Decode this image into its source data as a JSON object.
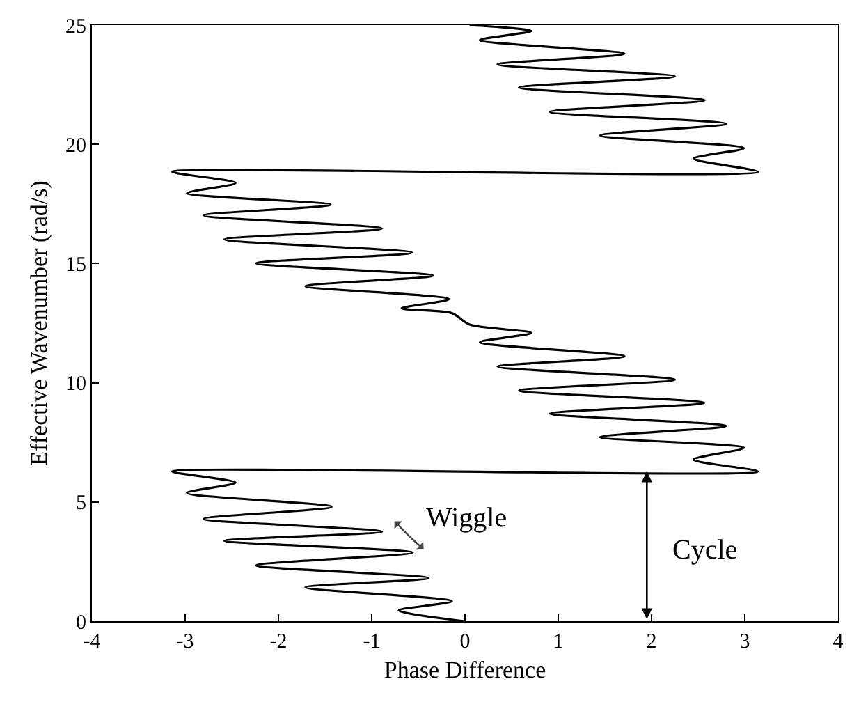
{
  "chart_data": {
    "type": "line",
    "xlabel": "Phase Difference",
    "ylabel": "Effective Wavenumber (rad/s)",
    "series": [
      {
        "color": "#000000",
        "x": [
          0,
          -0.71,
          -0.14,
          -1.71,
          -0.39,
          -2.24,
          -0.56,
          -2.58,
          -0.89,
          -2.8,
          -1.43,
          -2.98,
          -2.46,
          -3.14,
          3.14,
          2.45,
          2.99,
          1.45,
          2.8,
          0.91,
          2.57,
          0.58,
          2.25,
          0.35,
          1.71,
          0.16,
          0.71,
          0.05,
          -0.14,
          -0.68,
          -0.17,
          -1.71,
          -0.34,
          -2.24,
          -0.57,
          -2.58,
          -0.89,
          -2.8,
          -1.44,
          -2.98,
          -2.46,
          -3.14,
          3.14,
          2.45,
          2.99,
          1.45,
          2.8,
          0.91,
          2.57,
          0.58,
          2.25,
          0.35,
          1.71,
          0.16,
          0.71,
          0.05
        ],
        "values": [
          0,
          0.45,
          0.84,
          1.42,
          1.81,
          2.34,
          2.88,
          3.37,
          3.76,
          4.29,
          4.8,
          5.38,
          5.81,
          6.28,
          6.28,
          6.78,
          7.27,
          7.72,
          8.19,
          8.7,
          9.16,
          9.67,
          10.13,
          10.68,
          11.11,
          11.7,
          12.09,
          12.44,
          12.92,
          13.12,
          13.51,
          14.05,
          14.49,
          15.01,
          15.46,
          16.01,
          16.47,
          17.02,
          17.47,
          17.95,
          18.38,
          18.85,
          18.85,
          19.4,
          19.84,
          20.37,
          20.86,
          21.36,
          21.85,
          22.38,
          22.85,
          23.35,
          23.8,
          24.37,
          24.75,
          25
        ]
      }
    ],
    "annotations": [
      "Wiggle",
      {
        "text": "Cycle",
        "x": 1.95,
        "y": 6.28
      }
    ],
    "xlim": [
      -4,
      4
    ],
    "xticks": [
      -4,
      -3,
      -2,
      -1,
      0,
      1,
      2,
      3,
      4
    ],
    "ylim": [
      0,
      25
    ],
    "yticks": [
      0,
      5,
      10,
      15,
      20,
      25
    ],
    "grid": false,
    "marker": "none",
    "line_style": "solid"
  }
}
